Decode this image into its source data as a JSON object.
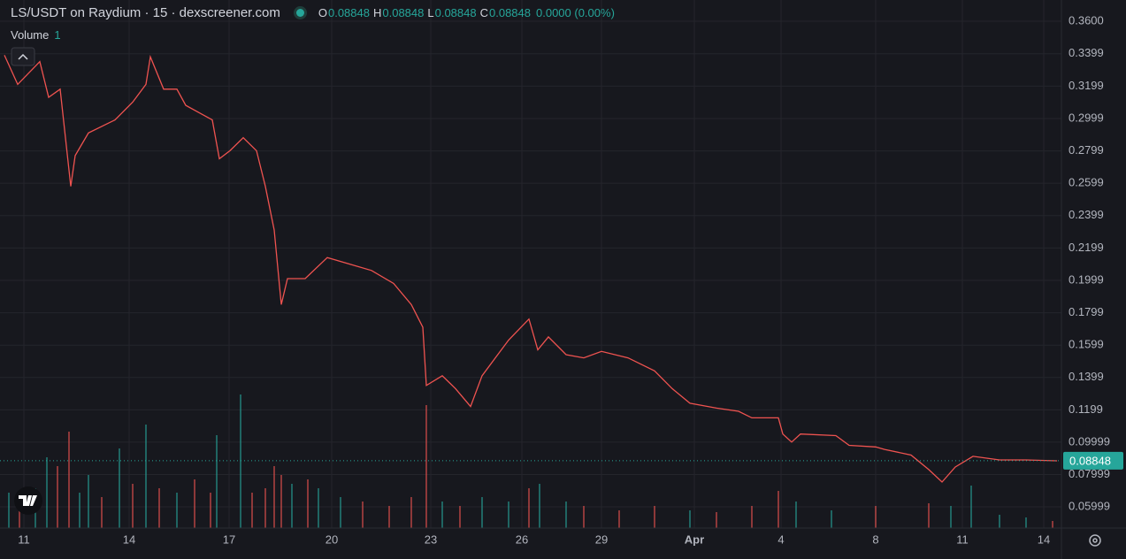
{
  "header": {
    "title": "LS/USDT on Raydium · 15 · dexscreener.com",
    "ohlc": [
      {
        "key": "O",
        "value": "0.08848"
      },
      {
        "key": "H",
        "value": "0.08848"
      },
      {
        "key": "L",
        "value": "0.08848"
      },
      {
        "key": "C",
        "value": "0.08848"
      }
    ],
    "change": "0.0000 (0.00%)",
    "volume_label": "Volume",
    "volume_value": "1"
  },
  "chart_data": {
    "type": "line",
    "color": "#ef5350",
    "x": [
      0.2,
      1.7,
      4.2,
      5.2,
      6.5,
      7.7,
      8.2,
      9.7,
      12.7,
      14.7,
      16.2,
      16.7,
      18.2,
      19.7,
      20.7,
      23.7,
      24.5,
      25.7,
      27.2,
      28.7,
      29.7,
      30.7,
      31.5,
      32.2,
      34.2,
      36.7,
      39.2,
      41.7,
      44.2,
      46.2,
      47.5,
      47.9,
      49.7,
      51.2,
      52.9,
      54.2,
      55.7,
      57.2,
      59.5,
      60.5,
      61.7,
      63.7,
      65.7,
      67.7,
      70.7,
      73.7,
      75.7,
      77.7,
      80.7,
      83.2,
      84.7,
      87.7,
      88.2,
      89.2,
      90.2,
      94.2,
      95.7,
      98.7,
      99.7,
      102.7,
      104.7,
      106.2,
      107.7,
      109.7,
      112.7,
      115.7,
      119.2
    ],
    "values": [
      0.339,
      0.321,
      0.335,
      0.313,
      0.318,
      0.258,
      0.277,
      0.291,
      0.299,
      0.31,
      0.321,
      0.338,
      0.318,
      0.318,
      0.308,
      0.299,
      0.275,
      0.28,
      0.288,
      0.28,
      0.258,
      0.231,
      0.185,
      0.201,
      0.201,
      0.214,
      0.21,
      0.206,
      0.198,
      0.185,
      0.171,
      0.135,
      0.141,
      0.133,
      0.122,
      0.141,
      0.152,
      0.163,
      0.176,
      0.157,
      0.165,
      0.154,
      0.152,
      0.156,
      0.152,
      0.144,
      0.133,
      0.124,
      0.121,
      0.119,
      0.115,
      0.115,
      0.105,
      0.1,
      0.105,
      0.104,
      0.098,
      0.097,
      0.0955,
      0.092,
      0.083,
      0.0753,
      0.0846,
      0.0912,
      0.089,
      0.089,
      0.0884
    ],
    "xlim": [
      0,
      120
    ],
    "xticks": [
      {
        "value": 2.4,
        "label": "11"
      },
      {
        "value": 14.3,
        "label": "14"
      },
      {
        "value": 25.6,
        "label": "17"
      },
      {
        "value": 37.2,
        "label": "20"
      },
      {
        "value": 48.4,
        "label": "23"
      },
      {
        "value": 58.7,
        "label": "26"
      },
      {
        "value": 67.7,
        "label": "29"
      },
      {
        "value": 78.2,
        "label": "Apr"
      },
      {
        "value": 88,
        "label": "4"
      },
      {
        "value": 98.7,
        "label": "8"
      },
      {
        "value": 108.5,
        "label": "11"
      },
      {
        "value": 117.7,
        "label": "14"
      }
    ],
    "ylim": [
      0.0469,
      0.3731
    ],
    "yticks": [
      {
        "value": 0.36,
        "label": "0.3600"
      },
      0.3399,
      0.3199,
      0.2999,
      0.2799,
      0.2599,
      0.2399,
      0.2199,
      0.1999,
      0.1799,
      0.1599,
      0.1399,
      0.1199,
      0.09999,
      0.07999,
      0.05999
    ],
    "grid": true,
    "last_price": 0.08848,
    "last_price_color": "#26a69a",
    "volume": {
      "ylim": [
        0,
        160
      ],
      "x": [
        0.7,
        1.9,
        3.7,
        5,
        6.2,
        7.5,
        8.7,
        9.7,
        11.2,
        13.2,
        14.7,
        16.2,
        17.7,
        19.7,
        21.7,
        23.5,
        24.2,
        26.9,
        28.2,
        29.7,
        30.7,
        31.5,
        32.7,
        34.5,
        35.7,
        38.2,
        40.7,
        43.7,
        46.2,
        47.9,
        49.7,
        51.7,
        54.2,
        57.2,
        59.5,
        60.7,
        63.7,
        65.7,
        69.7,
        73.7,
        77.7,
        80.7,
        84.7,
        87.7,
        89.7,
        93.7,
        98.7,
        104.7,
        107.2,
        109.5,
        112.7,
        115.7,
        118.7
      ],
      "values": [
        40,
        30,
        45,
        80,
        70,
        109,
        40,
        60,
        35,
        90,
        50,
        117,
        45,
        40,
        55,
        40,
        105,
        151,
        40,
        45,
        70,
        60,
        50,
        55,
        45,
        35,
        30,
        25,
        35,
        139,
        30,
        25,
        35,
        30,
        45,
        50,
        30,
        25,
        20,
        25,
        20,
        18,
        25,
        42,
        30,
        20,
        25,
        28,
        25,
        48,
        15,
        12,
        8
      ],
      "colors": [
        "#26a69a",
        "#ef5350",
        "#26a69a",
        "#26a69a",
        "#ef5350",
        "#ef5350",
        "#26a69a",
        "#26a69a",
        "#ef5350",
        "#26a69a",
        "#ef5350",
        "#26a69a",
        "#ef5350",
        "#26a69a",
        "#ef5350",
        "#ef5350",
        "#26a69a",
        "#26a69a",
        "#ef5350",
        "#ef5350",
        "#ef5350",
        "#ef5350",
        "#26a69a",
        "#ef5350",
        "#26a69a",
        "#26a69a",
        "#ef5350",
        "#ef5350",
        "#ef5350",
        "#ef5350",
        "#26a69a",
        "#ef5350",
        "#26a69a",
        "#26a69a",
        "#ef5350",
        "#26a69a",
        "#26a69a",
        "#ef5350",
        "#ef5350",
        "#ef5350",
        "#26a69a",
        "#ef5350",
        "#ef5350",
        "#ef5350",
        "#26a69a",
        "#26a69a",
        "#ef5350",
        "#ef5350",
        "#26a69a",
        "#26a69a",
        "#26a69a",
        "#26a69a",
        "#ef5350"
      ]
    }
  }
}
